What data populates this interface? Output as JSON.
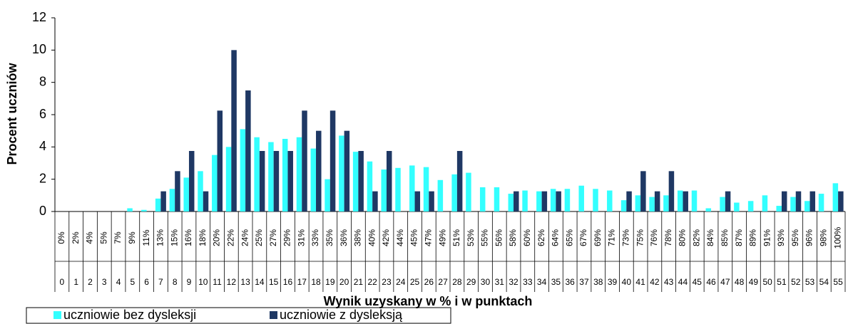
{
  "chart_data": {
    "type": "bar",
    "y_axis_label": "Procent uczniów",
    "x_axis_label": "Wynik uzyskany w % i w punktach",
    "categories": [
      "0",
      "1",
      "2",
      "3",
      "4",
      "5",
      "6",
      "7",
      "8",
      "9",
      "10",
      "11",
      "12",
      "13",
      "14",
      "15",
      "16",
      "17",
      "18",
      "19",
      "20",
      "21",
      "22",
      "23",
      "24",
      "25",
      "26",
      "27",
      "28",
      "29",
      "30",
      "31",
      "32",
      "33",
      "34",
      "35",
      "36",
      "37",
      "38",
      "39",
      "40",
      "41",
      "42",
      "43",
      "44",
      "45",
      "46",
      "47",
      "48",
      "49",
      "50",
      "51",
      "52",
      "53",
      "54",
      "55"
    ],
    "category_percents": [
      "0%",
      "2%",
      "4%",
      "5%",
      "7%",
      "9%",
      "11%",
      "13%",
      "15%",
      "16%",
      "18%",
      "20%",
      "22%",
      "24%",
      "25%",
      "27%",
      "29%",
      "31%",
      "33%",
      "35%",
      "36%",
      "38%",
      "40%",
      "42%",
      "44%",
      "45%",
      "47%",
      "49%",
      "51%",
      "53%",
      "55%",
      "56%",
      "58%",
      "60%",
      "62%",
      "64%",
      "65%",
      "67%",
      "69%",
      "71%",
      "73%",
      "75%",
      "76%",
      "78%",
      "80%",
      "82%",
      "84%",
      "85%",
      "87%",
      "89%",
      "91%",
      "93%",
      "95%",
      "96%",
      "98%",
      "100%"
    ],
    "series": [
      {
        "name": "uczniowie bez dysleksji",
        "color": "#33ffff",
        "values": [
          0,
          0,
          0,
          0,
          0,
          0.2,
          0.1,
          0.8,
          1.4,
          2.1,
          2.5,
          3.5,
          4.0,
          5.1,
          4.6,
          4.3,
          4.5,
          4.6,
          3.9,
          2.0,
          4.7,
          3.7,
          3.1,
          2.6,
          2.7,
          2.85,
          2.75,
          1.95,
          2.3,
          2.4,
          1.5,
          1.5,
          1.1,
          1.3,
          1.25,
          1.4,
          1.4,
          1.6,
          1.4,
          1.3,
          0.7,
          1.0,
          0.9,
          1.0,
          1.3,
          1.3,
          0.2,
          0.9,
          0.55,
          0.65,
          1.0,
          0.35,
          0.9,
          0.65,
          1.1,
          1.75
        ]
      },
      {
        "name": "uczniowie z dysleksją",
        "color": "#1f3864",
        "values": [
          0,
          0,
          0,
          0,
          0,
          0,
          0,
          1.25,
          2.5,
          3.75,
          1.25,
          6.25,
          10,
          7.5,
          3.75,
          3.75,
          3.75,
          6.25,
          5.0,
          6.25,
          5.0,
          3.75,
          1.25,
          3.75,
          0,
          1.25,
          1.25,
          0,
          3.75,
          0,
          0,
          0,
          1.25,
          0,
          1.25,
          1.25,
          0,
          0,
          0,
          0,
          1.25,
          2.5,
          1.25,
          2.5,
          1.25,
          0,
          0,
          1.25,
          0,
          0,
          0,
          1.25,
          1.25,
          1.25,
          0,
          1.25
        ]
      }
    ],
    "ylim": [
      0,
      12
    ],
    "yticks": [
      0,
      2,
      4,
      6,
      8,
      10,
      12
    ],
    "grid": false
  }
}
